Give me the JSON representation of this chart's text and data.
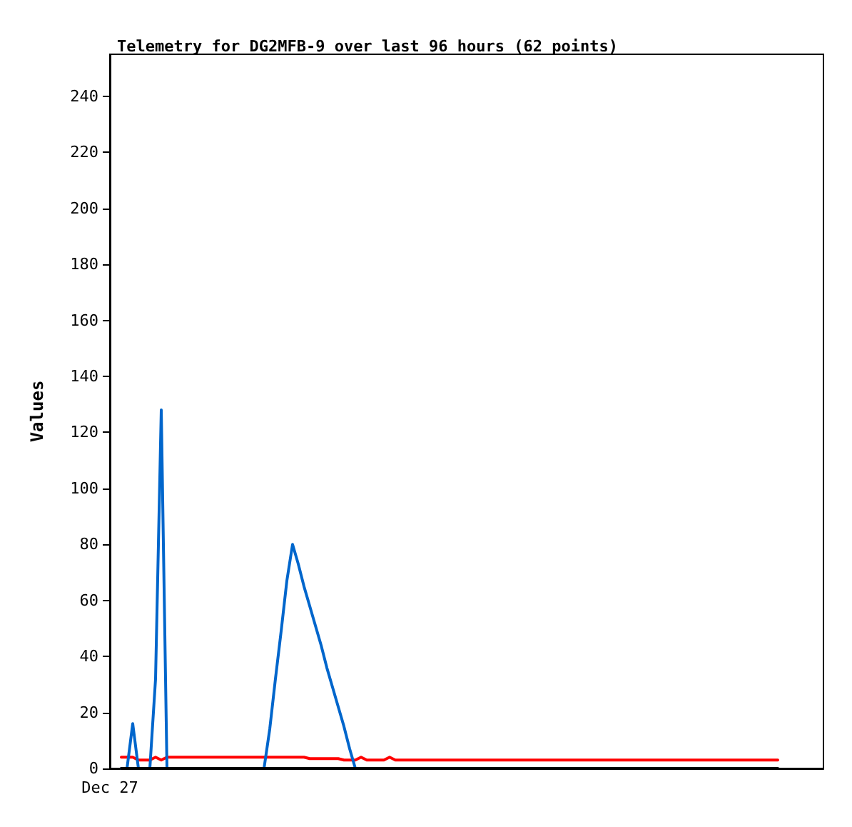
{
  "chart_data": {
    "type": "line",
    "title": "Telemetry for DG2MFB-9 over last 96 hours (62 points)",
    "ylabel": "Values",
    "categories": [
      "Dec 27",
      null,
      null,
      null,
      null,
      null,
      null,
      null,
      null,
      null,
      null,
      null,
      null,
      null,
      null,
      null,
      null,
      null,
      null,
      null,
      null,
      null,
      null,
      null,
      null,
      null,
      null,
      null,
      null,
      null,
      null,
      null,
      null,
      null,
      null,
      null,
      null,
      null,
      null,
      null,
      null,
      null,
      null,
      null,
      null,
      null,
      null,
      null,
      null,
      null,
      null,
      null,
      null,
      null,
      null,
      null,
      null,
      null,
      null,
      null,
      null,
      null,
      null,
      null,
      null,
      null,
      null,
      null,
      null,
      null,
      null,
      null,
      null,
      null,
      null,
      null,
      null,
      null,
      null,
      null,
      null,
      null,
      null,
      null,
      null,
      null,
      null,
      null,
      null,
      null,
      null,
      null,
      null,
      null,
      null,
      null,
      null,
      null,
      null,
      null,
      null,
      null,
      null,
      null,
      null,
      null,
      null,
      null,
      null,
      null,
      null,
      null,
      null,
      null,
      null,
      null,
      null,
      null,
      null,
      null,
      null,
      null,
      null,
      null,
      null,
      null
    ],
    "ylim": [
      0,
      255
    ],
    "yticks": [
      0,
      20,
      40,
      60,
      80,
      100,
      120,
      140,
      160,
      180,
      200,
      220,
      240
    ],
    "grid": false,
    "marker": "none",
    "line_style": "solid",
    "series": [
      {
        "color": "#ff0000",
        "values": [
          null,
          null,
          4,
          4,
          4,
          3,
          3,
          3,
          4,
          3,
          4,
          4,
          4,
          4,
          4,
          4,
          4,
          4,
          4,
          4,
          4,
          4,
          4,
          4,
          4,
          4,
          4,
          4,
          4,
          4,
          4,
          4,
          4,
          4,
          4,
          3.5,
          3.5,
          3.5,
          3.5,
          3.5,
          3.5,
          3,
          3,
          3,
          4,
          3,
          3,
          3,
          3,
          4,
          3,
          3,
          3,
          3,
          3,
          3,
          3,
          3,
          3,
          3,
          3,
          3,
          3,
          3,
          3,
          3,
          3,
          3,
          3,
          3,
          3,
          3,
          3,
          3,
          3,
          3,
          3,
          3,
          3,
          3,
          3,
          3,
          3,
          3,
          3,
          3,
          3,
          3,
          3,
          3,
          3,
          3,
          3,
          3,
          3,
          3,
          3,
          3,
          3,
          3,
          3,
          3,
          3,
          3,
          3,
          3,
          3,
          3,
          3,
          3,
          3,
          3,
          3,
          3,
          3,
          3,
          3,
          3,
          null,
          null,
          null,
          null,
          null,
          null,
          null,
          null
        ]
      },
      {
        "color": "#0066cc",
        "values": [
          null,
          null,
          0,
          0,
          16,
          0,
          0,
          0,
          32,
          128,
          0,
          0,
          0,
          0,
          0,
          0,
          0,
          0,
          0,
          0,
          0,
          0,
          0,
          0,
          0,
          0,
          0,
          0,
          14,
          32,
          49,
          67,
          80,
          73,
          65,
          58,
          51,
          44,
          36,
          29,
          22,
          15,
          7,
          0,
          null,
          null,
          null,
          null,
          null,
          null,
          null,
          null,
          null,
          null,
          null,
          null,
          null,
          null,
          null,
          null,
          null,
          null,
          null,
          null,
          null,
          null,
          null,
          null,
          null,
          null,
          null,
          null,
          null,
          null,
          null,
          null,
          null,
          null,
          null,
          null,
          null,
          null,
          null,
          null,
          null,
          null,
          null,
          null,
          null,
          null,
          null,
          null,
          null,
          null,
          null,
          null,
          null,
          null,
          null,
          null,
          null,
          null,
          null,
          null,
          null,
          null,
          null,
          null,
          null,
          null,
          null,
          null,
          null,
          null,
          null,
          null,
          null,
          null,
          null,
          null,
          null,
          null,
          null,
          null,
          null,
          null
        ]
      },
      {
        "color": "#000000",
        "values": [
          null,
          null,
          0,
          0,
          0,
          0,
          0,
          0,
          0,
          0,
          0,
          0,
          0,
          0,
          0,
          0,
          0,
          0,
          0,
          0,
          0,
          0,
          0,
          0,
          0,
          0,
          0,
          0,
          0,
          0,
          0,
          0,
          0,
          0,
          0,
          0,
          0,
          0,
          0,
          0,
          0,
          0,
          0,
          0,
          0,
          0,
          0,
          0,
          0,
          0,
          0,
          0,
          0,
          0,
          0,
          0,
          0,
          0,
          0,
          0,
          0,
          0,
          0,
          0,
          0,
          0,
          0,
          0,
          0,
          0,
          0,
          0,
          0,
          0,
          0,
          0,
          0,
          0,
          0,
          0,
          0,
          0,
          0,
          0,
          0,
          0,
          0,
          0,
          0,
          0,
          0,
          0,
          0,
          0,
          0,
          0,
          0,
          0,
          0,
          0,
          0,
          0,
          0,
          0,
          0,
          0,
          0,
          0,
          0,
          0,
          0,
          0,
          0,
          0,
          0,
          0,
          0,
          0,
          null,
          null,
          null,
          null,
          null,
          null,
          null,
          null
        ]
      }
    ]
  }
}
